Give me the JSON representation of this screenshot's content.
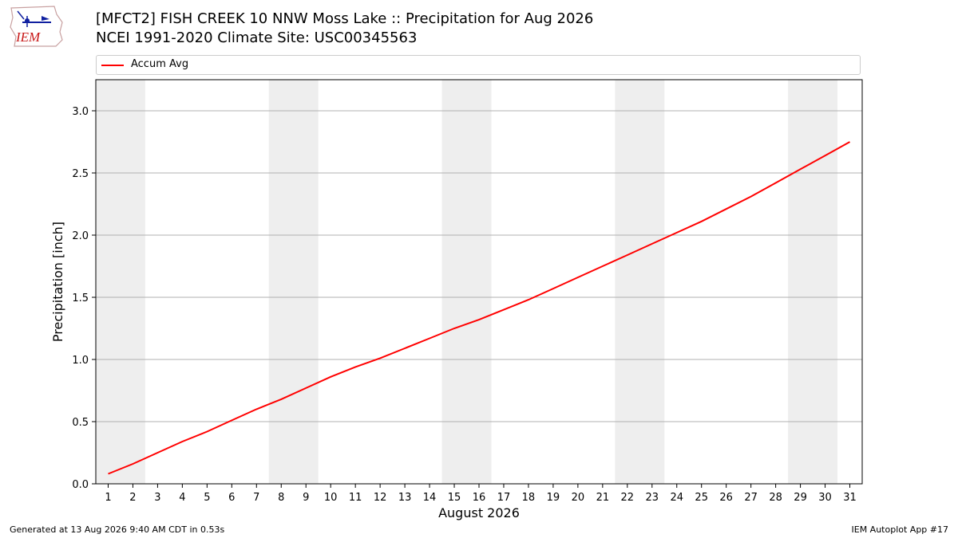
{
  "header": {
    "title": "[MFCT2] FISH CREEK 10 NNW Moss Lake :: Precipitation for Aug 2026",
    "subtitle": "NCEI 1991-2020 Climate Site: USC00345563"
  },
  "logo": {
    "text": "IEM",
    "icon": "iem-iowa-logo"
  },
  "legend": {
    "entries": [
      "Accum Avg"
    ],
    "placement": "top"
  },
  "footer": {
    "generated": "Generated at 13 Aug 2026 9:40 AM CDT in 0.53s",
    "app": "IEM Autoplot App #17"
  },
  "colors": {
    "line": "#ff0000",
    "weekend_band": "#eeeeee",
    "grid": "#b0b0b0"
  },
  "chart_data": {
    "type": "line",
    "xlabel": "August 2026",
    "ylabel": "Precipitation [inch]",
    "xlim": [
      0.5,
      31.5
    ],
    "ylim": [
      0,
      3.25
    ],
    "xticks": [
      1,
      2,
      3,
      4,
      5,
      6,
      7,
      8,
      9,
      10,
      11,
      12,
      13,
      14,
      15,
      16,
      17,
      18,
      19,
      20,
      21,
      22,
      23,
      24,
      25,
      26,
      27,
      28,
      29,
      30,
      31
    ],
    "yticks": [
      0.0,
      0.5,
      1.0,
      1.5,
      2.0,
      2.5,
      3.0
    ],
    "ytick_labels": [
      "0.0",
      "0.5",
      "1.0",
      "1.5",
      "2.0",
      "2.5",
      "3.0"
    ],
    "grid": "horizontal",
    "weekend_bands": [
      [
        1,
        2
      ],
      [
        8,
        9
      ],
      [
        15,
        16
      ],
      [
        22,
        23
      ],
      [
        29,
        30
      ]
    ],
    "series": [
      {
        "name": "Accum Avg",
        "x": [
          1,
          2,
          3,
          4,
          5,
          6,
          7,
          8,
          9,
          10,
          11,
          12,
          13,
          14,
          15,
          16,
          17,
          18,
          19,
          20,
          21,
          22,
          23,
          24,
          25,
          26,
          27,
          28,
          29,
          30,
          31
        ],
        "values": [
          0.08,
          0.16,
          0.25,
          0.34,
          0.42,
          0.51,
          0.6,
          0.68,
          0.77,
          0.86,
          0.94,
          1.01,
          1.09,
          1.17,
          1.25,
          1.32,
          1.4,
          1.48,
          1.57,
          1.66,
          1.75,
          1.84,
          1.93,
          2.02,
          2.11,
          2.21,
          2.31,
          2.42,
          2.53,
          2.64,
          2.75
        ]
      }
    ]
  }
}
